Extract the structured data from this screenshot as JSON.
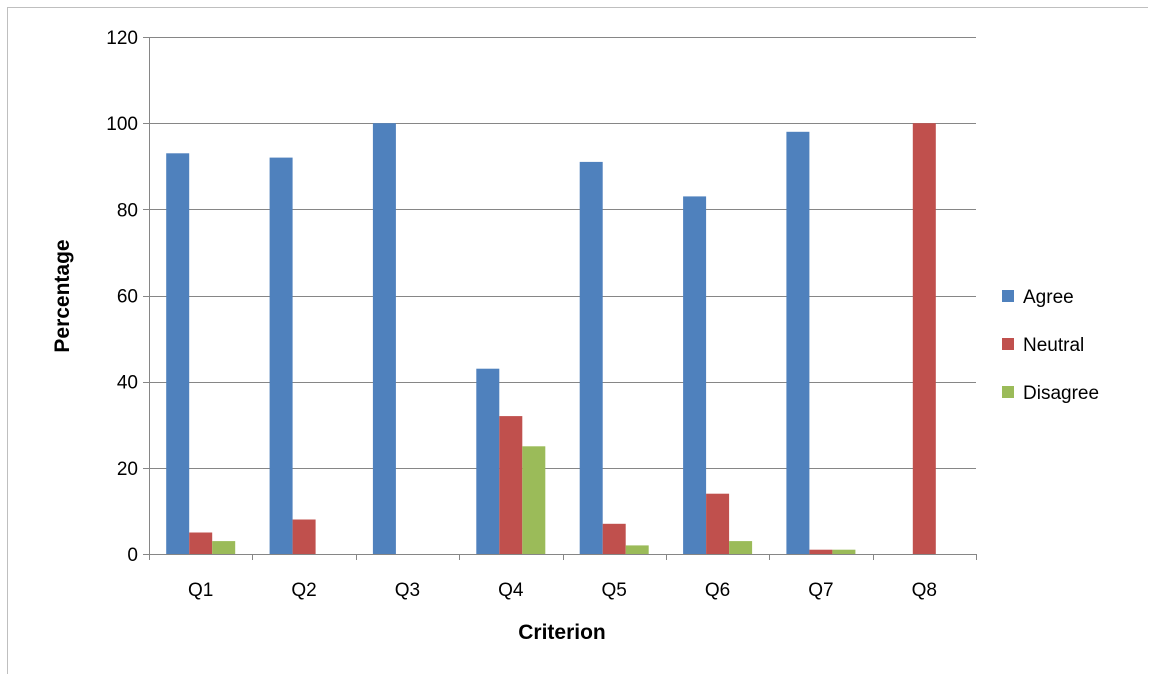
{
  "chart_data": {
    "type": "bar",
    "title": "",
    "xlabel": "Criterion",
    "ylabel": "Percentage",
    "categories": [
      "Q1",
      "Q2",
      "Q3",
      "Q4",
      "Q5",
      "Q6",
      "Q7",
      "Q8"
    ],
    "series": [
      {
        "name": "Agree",
        "color": "#4f81bd",
        "values": [
          93,
          92,
          100,
          43,
          91,
          83,
          98,
          0
        ]
      },
      {
        "name": "Neutral",
        "color": "#c0504d",
        "values": [
          5,
          8,
          0,
          32,
          7,
          14,
          1,
          100
        ]
      },
      {
        "name": "Disagree",
        "color": "#9bbb59",
        "values": [
          3,
          0,
          0,
          25,
          2,
          3,
          1,
          0
        ]
      }
    ],
    "ylim": [
      0,
      120
    ],
    "yticks": [
      0,
      20,
      40,
      60,
      80,
      100,
      120
    ],
    "grid": true,
    "legend_position": "right"
  }
}
